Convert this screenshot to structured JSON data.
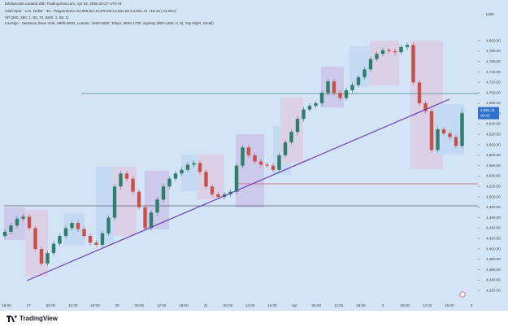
{
  "chart_data": {
    "type": "candlestick",
    "attribution": "bdolivera66 created with TradingView.com, Apr 02, 2026 22:27 UTC+8",
    "symbol_line": "Gold Spot · U.S. Dollar · 30 · Pepperstone  O4,666.65  H4,670.08  L4,651.56  C4,661.41  +15.16 (+0.33%)",
    "indicator_lines": [
      "VP (200, 280, 1, 60, 70, Both, 1, 68, 1)",
      "LuxAlgo - Sessions (New York, 0800-0930, London, 1500-0000, Tokyo, 0800-1700, Sydney (900-1400, 0, 9), Top Right, Small)"
    ],
    "currency": "USD",
    "last_price_label": "4,661.41",
    "countdown": "03:42",
    "watermark": "TradingView",
    "x_labels": [
      "18:00",
      "27",
      "06:00",
      "12:00",
      "18:00",
      "28",
      "06:00",
      "12:00",
      "18:00",
      "31",
      "06:00",
      "12:00",
      "18:00",
      "Apr",
      "06:00",
      "12:00",
      "18:00",
      "2",
      "06:00",
      "12:00",
      "18:00",
      "3"
    ],
    "open": [
      4425,
      4433,
      4445,
      4458,
      4462,
      4440,
      4400,
      4372,
      4392,
      4410,
      4425,
      4440,
      4450,
      4438,
      4425,
      4412,
      4408,
      4430,
      4460,
      4520,
      4545,
      4535,
      4510,
      4480,
      4440,
      4470,
      4495,
      4520,
      4535,
      4545,
      4552,
      4562,
      4565,
      4548,
      4520,
      4505,
      4500,
      4505,
      4510,
      4560,
      4595,
      4580,
      4568,
      4562,
      4560,
      4552,
      4580,
      4605,
      4625,
      4650,
      4668,
      4675,
      4680,
      4700,
      4722,
      4700,
      4690,
      4705,
      4715,
      4730,
      4745,
      4765,
      4775,
      4782,
      4780,
      4778,
      4788,
      4792,
      4720,
      4680,
      4665,
      4590,
      4630,
      4622,
      4615,
      4598
    ],
    "high": [
      4438,
      4450,
      4463,
      4467,
      4467,
      4445,
      4405,
      4397,
      4415,
      4430,
      4445,
      4455,
      4455,
      4443,
      4430,
      4417,
      4435,
      4465,
      4525,
      4550,
      4550,
      4540,
      4515,
      4485,
      4475,
      4500,
      4525,
      4540,
      4550,
      4557,
      4567,
      4570,
      4570,
      4553,
      4525,
      4510,
      4510,
      4515,
      4565,
      4600,
      4600,
      4585,
      4573,
      4567,
      4565,
      4585,
      4610,
      4630,
      4655,
      4673,
      4680,
      4685,
      4705,
      4727,
      4727,
      4705,
      4710,
      4720,
      4735,
      4750,
      4770,
      4780,
      4787,
      4787,
      4785,
      4793,
      4797,
      4797,
      4725,
      4685,
      4670,
      4635,
      4635,
      4627,
      4620,
      4670
    ],
    "low": [
      4420,
      4428,
      4440,
      4453,
      4435,
      4395,
      4367,
      4367,
      4387,
      4405,
      4420,
      4435,
      4433,
      4420,
      4407,
      4403,
      4403,
      4425,
      4455,
      4515,
      4530,
      4505,
      4475,
      4435,
      4435,
      4465,
      4490,
      4515,
      4530,
      4540,
      4547,
      4557,
      4543,
      4515,
      4500,
      4495,
      4495,
      4500,
      4505,
      4555,
      4575,
      4563,
      4557,
      4555,
      4547,
      4547,
      4575,
      4600,
      4620,
      4645,
      4663,
      4670,
      4675,
      4695,
      4695,
      4685,
      4685,
      4700,
      4710,
      4725,
      4740,
      4760,
      4770,
      4775,
      4773,
      4773,
      4783,
      4715,
      4675,
      4660,
      4585,
      4585,
      4617,
      4610,
      4593,
      4593
    ],
    "close": [
      4433,
      4445,
      4458,
      4462,
      4440,
      4400,
      4372,
      4392,
      4410,
      4425,
      4440,
      4450,
      4438,
      4425,
      4412,
      4408,
      4430,
      4460,
      4520,
      4545,
      4535,
      4510,
      4480,
      4440,
      4470,
      4495,
      4520,
      4535,
      4545,
      4552,
      4562,
      4565,
      4548,
      4520,
      4505,
      4500,
      4505,
      4510,
      4560,
      4595,
      4580,
      4568,
      4562,
      4560,
      4552,
      4580,
      4605,
      4625,
      4650,
      4668,
      4675,
      4680,
      4700,
      4722,
      4700,
      4690,
      4705,
      4715,
      4730,
      4745,
      4765,
      4775,
      4782,
      4780,
      4778,
      4788,
      4792,
      4720,
      4680,
      4665,
      4590,
      4630,
      4622,
      4615,
      4598,
      4661
    ],
    "up_color": "#2f7d6d",
    "down_color": "#c8504a",
    "ylim": [
      4300,
      4855
    ],
    "yticks": [
      {
        "value": 4320,
        "label": "4,320.00"
      },
      {
        "value": 4340,
        "label": "4,340.00"
      },
      {
        "value": 4360,
        "label": "4,360.00"
      },
      {
        "value": 4380,
        "label": "4,380.00"
      },
      {
        "value": 4400,
        "label": "4,400.00"
      },
      {
        "value": 4420,
        "label": "4,420.00"
      },
      {
        "value": 4440,
        "label": "4,440.00"
      },
      {
        "value": 4460,
        "label": "4,460.00"
      },
      {
        "value": 4480,
        "label": "4,480.00"
      },
      {
        "value": 4500,
        "label": "4,500.00"
      },
      {
        "value": 4520,
        "label": "4,520.00"
      },
      {
        "value": 4540,
        "label": "4,540.00"
      },
      {
        "value": 4560,
        "label": "4,560.00"
      },
      {
        "value": 4580,
        "label": "4,580.00"
      },
      {
        "value": 4600,
        "label": "4,600.00"
      },
      {
        "value": 4620,
        "label": "4,620.00"
      },
      {
        "value": 4640,
        "label": "4,640.00"
      },
      {
        "value": 4660,
        "label": "4,660.00"
      },
      {
        "value": 4680,
        "label": "4,680.00"
      },
      {
        "value": 4700,
        "label": "4,700.00"
      },
      {
        "value": 4720,
        "label": "4,720.00"
      },
      {
        "value": 4740,
        "label": "4,740.00"
      },
      {
        "value": 4760,
        "label": "4,760.00"
      },
      {
        "value": 4780,
        "label": "4,780.00"
      },
      {
        "value": 4800,
        "label": "4,800.00"
      }
    ],
    "grid": false
  }
}
